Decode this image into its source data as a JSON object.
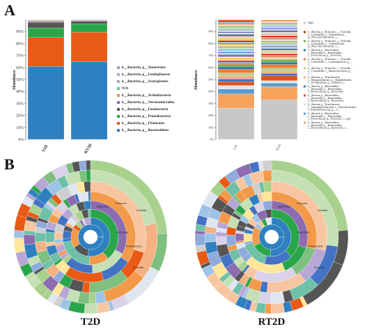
{
  "panels": {
    "a": "A",
    "b": "B"
  },
  "chart_data": [
    {
      "type": "bar",
      "stacked": true,
      "title": "",
      "xlabel": "",
      "ylabel": "Abundance",
      "ylim": [
        0,
        100
      ],
      "yticks": [
        "0%",
        "10%",
        "20%",
        "30%",
        "40%",
        "50%",
        "60%",
        "70%",
        "80%",
        "90%"
      ],
      "categories": [
        "T2D",
        "RT2D"
      ],
      "legend_position": "right",
      "series": [
        {
          "name": "k__Bacteria, p__Bacteroidetes",
          "color": "#2f80c0",
          "values": [
            61,
            65
          ]
        },
        {
          "name": "k__Bacteria, p__Firmicutes",
          "color": "#e85a15",
          "values": [
            24,
            24.5
          ]
        },
        {
          "name": "k__Bacteria, p__Proteobacteria",
          "color": "#2aa64a",
          "values": [
            8,
            7
          ]
        },
        {
          "name": "k__Bacteria, p__Fusobacteria",
          "color": "#555555",
          "values": [
            4.5,
            2
          ]
        },
        {
          "name": "k__Bacteria, p__Verrucomicrobia",
          "color": "#8c6bb1",
          "values": [
            1.0,
            0.6
          ]
        },
        {
          "name": "k__Bacteria, p__Actinobacteria",
          "color": "#f29a4a",
          "values": [
            0.6,
            0.4
          ]
        },
        {
          "name": "N/A",
          "color": "#6ec0a8",
          "values": [
            0.4,
            0.2
          ]
        },
        {
          "name": "k__Bacteria, p__Synergistetes",
          "color": "#a8a8a8",
          "values": [
            0.2,
            0.1
          ]
        },
        {
          "name": "k__Bacteria, p__Lentisphaerae",
          "color": "#b7a6d6",
          "values": [
            0.2,
            0.1
          ]
        },
        {
          "name": "k__Bacteria, p__Tenericutes",
          "color": "#9aa0a6",
          "values": [
            0.1,
            0.1
          ]
        }
      ]
    },
    {
      "type": "bar",
      "stacked": true,
      "title": "",
      "xlabel": "",
      "ylabel": "Abundance",
      "ylim": [
        0,
        100
      ],
      "yticks": [
        "0%",
        "10%",
        "20%",
        "30%",
        "40%",
        "50%",
        "60%",
        "70%",
        "80%",
        "90%"
      ],
      "categories": [
        "T2D",
        "RT2D"
      ],
      "legend_position": "right",
      "series": [
        {
          "name": "Other",
          "color": "#c7c7c7",
          "values": [
            26,
            33
          ]
        },
        {
          "name": "k__Bacteria, p__Bacteroidetes, c__Bacteroidia, o__Bacteroidales, f__Bacteroidaceae, g__Bacteroides, s__",
          "color": "#f7a35c",
          "values": [
            12,
            11
          ]
        },
        {
          "name": "k__Bacteria, p__Bacteroidetes, c__Bacteroidia, o__Bacteroidales, f__Prevotellaceae, g__Prevotella, s__copri",
          "color": "#5b9bd5",
          "values": [
            4,
            3
          ]
        },
        {
          "name": "k__Bacteria, p__Proteobacteria, c__Gammaproteobacteria, o__Enterobacteriales, f__Enterobacteriaceae, g__, s__",
          "color": "#dfe6f2",
          "values": [
            3,
            2
          ]
        },
        {
          "name": "k__Bacteria, p__Bacteroidetes, c__Bacteroidia, o__Bacteroidales, f__Bacteroidaceae, g__Bacteroides, s__plebeius",
          "color": "#e0541a",
          "values": [
            3,
            4
          ]
        },
        {
          "name": "k__Bacteria, p__Bacteroidetes, c__Bacteroidia, o__Bacteroidales, f__Bacteroidaceae, g__Bacteroides, s__uniformis",
          "color": "#4472c4",
          "values": [
            2.5,
            2
          ]
        },
        {
          "name": "k__Bacteria, p__Proteobacteria, c__Betaproteobacteria, o__Burkholderiales, f__Alcaligenaceae, g__Sutterella, s__",
          "color": "#f4b183",
          "values": [
            3,
            2.5
          ]
        },
        {
          "name": "k__Bacteria, p__Firmicutes, c__Clostridia, o__Clostridiales, f__Ruminococcaceae, g__, s__",
          "color": "#a9d18e",
          "values": [
            2,
            2
          ]
        },
        {
          "name": "k__Bacteria, p__Firmicutes, c__Clostridia, o__Clostridiales, f__Lachnospiraceae, g__, s__",
          "color": "#ed7d31",
          "values": [
            3,
            3
          ]
        },
        {
          "name": "k__Bacteria, p__Bacteroidetes, c__Bacteroidia, o__Bacteroidales, f__Prevotellaceae, g__Prevotella, s__stercorea",
          "color": "#2e75b6",
          "values": [
            2,
            2
          ]
        },
        {
          "name": "k__Bacteria, p__Firmicutes, c__Clostridia, o__Clostridiales, f__Veillonellaceae, g__Phascolarctobacterium, s__",
          "color": "#70ad47",
          "values": [
            2,
            1.5
          ]
        },
        {
          "name": "k__Bacteria, p__Firmicutes, c__Clostridia, o__Clostridiales, f__Veillonellaceae, g__Phascolarctobacterium, s__",
          "color": "#9e480e",
          "values": [
            37.5,
            33.5
          ]
        }
      ]
    },
    {
      "type": "sunburst",
      "title": "T2D",
      "rings": 7,
      "labels": [
        "Bacteroides",
        "Firmicutes",
        "Clostridia",
        "Bacteroidia",
        "Proteobacteria",
        "Prevotella"
      ]
    },
    {
      "type": "sunburst",
      "title": "RT2D",
      "rings": 7,
      "labels": [
        "Bacteroides",
        "Firmicutes",
        "Clostridia",
        "Bacteroidia",
        "Proteobacteria",
        "Prevotella"
      ]
    }
  ]
}
